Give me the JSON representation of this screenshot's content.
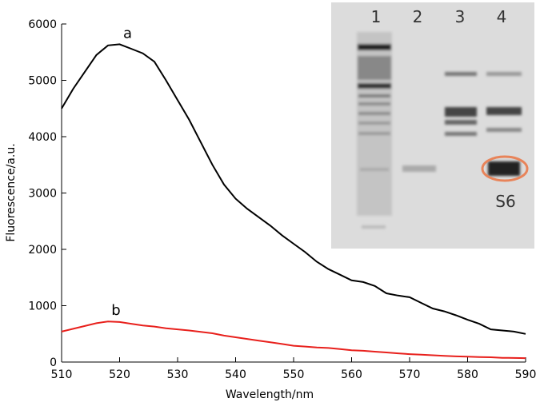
{
  "chart_data": {
    "type": "line",
    "x_label": "Wavelength/nm",
    "y_label": "Fluorescence/a.u.",
    "x": [
      510,
      512,
      514,
      516,
      518,
      520,
      522,
      524,
      526,
      528,
      530,
      532,
      534,
      536,
      538,
      540,
      542,
      544,
      546,
      548,
      550,
      552,
      554,
      556,
      558,
      560,
      562,
      564,
      566,
      568,
      570,
      572,
      574,
      576,
      578,
      580,
      582,
      584,
      586,
      588,
      590
    ],
    "series": [
      {
        "name": "a",
        "color": "#000000",
        "values": [
          4500,
          4850,
          5150,
          5450,
          5620,
          5640,
          5560,
          5480,
          5330,
          5000,
          4650,
          4300,
          3900,
          3500,
          3150,
          2900,
          2720,
          2570,
          2420,
          2250,
          2100,
          1950,
          1780,
          1650,
          1550,
          1450,
          1420,
          1350,
          1220,
          1180,
          1150,
          1050,
          950,
          900,
          830,
          750,
          680,
          580,
          560,
          540,
          500
        ]
      },
      {
        "name": "b",
        "color": "#e8201c",
        "values": [
          540,
          590,
          640,
          690,
          720,
          710,
          680,
          650,
          630,
          600,
          580,
          560,
          535,
          510,
          470,
          440,
          410,
          380,
          350,
          320,
          290,
          275,
          260,
          250,
          230,
          210,
          200,
          185,
          170,
          155,
          140,
          130,
          120,
          110,
          100,
          95,
          90,
          85,
          75,
          72,
          70
        ]
      }
    ],
    "xlim": [
      510,
      590
    ],
    "xticks": [
      510,
      520,
      530,
      540,
      550,
      560,
      570,
      580,
      590
    ],
    "ylim": [
      0,
      6000
    ],
    "yticks": [
      0,
      1000,
      2000,
      3000,
      4000,
      5000,
      6000
    ],
    "inset": {
      "lanes": [
        "1",
        "2",
        "3",
        "4"
      ],
      "band_label": "S6"
    }
  }
}
